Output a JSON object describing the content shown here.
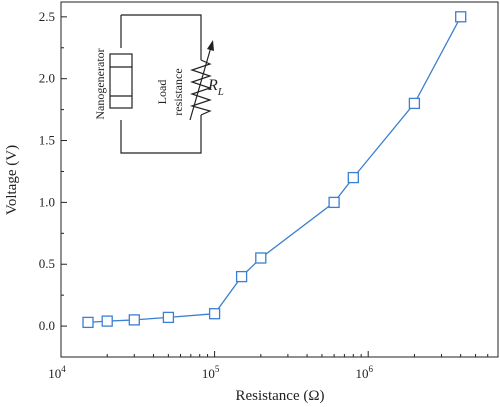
{
  "chart_data": {
    "type": "line",
    "xlabel": "Resistance (Ω)",
    "ylabel": "Voltage (V)",
    "xscale": "log",
    "xlim": [
      10000,
      7000000
    ],
    "ylim": [
      -0.25,
      2.62
    ],
    "x_ticks": [
      10000,
      100000,
      1000000
    ],
    "x_tick_labels": [
      {
        "base": "10",
        "exp": "4"
      },
      {
        "base": "10",
        "exp": "5"
      },
      {
        "base": "10",
        "exp": "6"
      }
    ],
    "y_ticks": [
      0.0,
      0.5,
      1.0,
      1.5,
      2.0,
      2.5
    ],
    "y_tick_labels": [
      "0.0",
      "0.5",
      "1.0",
      "1.5",
      "2.0",
      "2.5"
    ],
    "grid": false,
    "marker": "open-square",
    "series_color": "#3a7fd0",
    "series": [
      {
        "x": [
          15000,
          20000,
          30000,
          50000,
          100000,
          150000,
          200000,
          600000,
          800000,
          2000000,
          4000000
        ],
        "y": [
          0.03,
          0.04,
          0.05,
          0.07,
          0.1,
          0.4,
          0.55,
          1.0,
          1.2,
          1.8,
          2.5
        ]
      }
    ]
  },
  "inset": {
    "nanogenerator_label": "Nanogenerator",
    "load_label_line1": "Load",
    "load_label_line2": "resistance",
    "rl_label": "R",
    "rl_sub": "L"
  }
}
